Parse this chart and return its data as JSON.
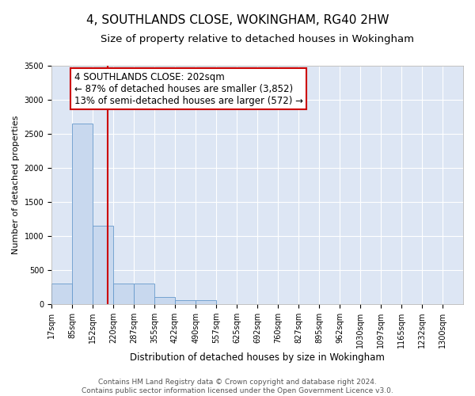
{
  "title": "4, SOUTHLANDS CLOSE, WOKINGHAM, RG40 2HW",
  "subtitle": "Size of property relative to detached houses in Wokingham",
  "xlabel": "Distribution of detached houses by size in Wokingham",
  "ylabel": "Number of detached properties",
  "footer_line1": "Contains HM Land Registry data © Crown copyright and database right 2024.",
  "footer_line2": "Contains public sector information licensed under the Open Government Licence v3.0.",
  "bin_edges": [
    17,
    85,
    152,
    220,
    287,
    355,
    422,
    490,
    557,
    625,
    692,
    760,
    827,
    895,
    962,
    1030,
    1097,
    1165,
    1232,
    1300,
    1367
  ],
  "bin_heights": [
    300,
    2650,
    1150,
    300,
    300,
    100,
    60,
    50,
    0,
    0,
    0,
    0,
    0,
    0,
    0,
    0,
    0,
    0,
    0,
    0
  ],
  "bar_color": "#c8d8ee",
  "bar_edge_color": "#6699cc",
  "property_size": 202,
  "vline_color": "#cc0000",
  "annotation_line1": "4 SOUTHLANDS CLOSE: 202sqm",
  "annotation_line2": "← 87% of detached houses are smaller (3,852)",
  "annotation_line3": "13% of semi-detached houses are larger (572) →",
  "annotation_box_color": "#ffffff",
  "annotation_box_edge_color": "#cc0000",
  "ylim": [
    0,
    3500
  ],
  "yticks": [
    0,
    500,
    1000,
    1500,
    2000,
    2500,
    3000,
    3500
  ],
  "background_color": "#dde6f4",
  "grid_color": "#ffffff",
  "title_fontsize": 11,
  "subtitle_fontsize": 9.5,
  "annotation_fontsize": 8.5,
  "ylabel_fontsize": 8,
  "xlabel_fontsize": 8.5,
  "tick_fontsize": 7,
  "footer_fontsize": 6.5
}
